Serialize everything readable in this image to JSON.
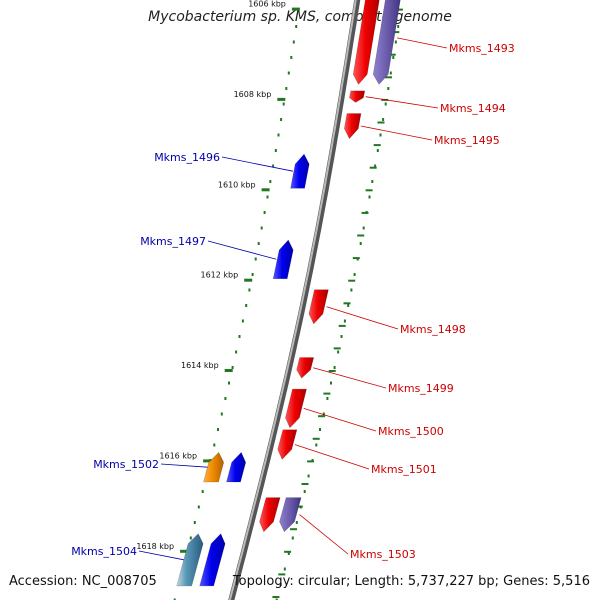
{
  "title": "Mycobacterium sp. KMS, complete genome",
  "footer": {
    "accession": "Accession: NC_008705",
    "summary": "Topology: circular; Length: 5,737,227 bp; Genes: 5,516"
  },
  "colors": {
    "forward_cds": "#ee0000",
    "reverse_cds": "#0000ee",
    "forward_label": "#cc0000",
    "reverse_label": "#0000aa",
    "tick": "#227722",
    "backbone": "#7a7a7a",
    "purple_feature": "#6a5aaa",
    "orange_feature": "#ee8800"
  },
  "ticks": [
    {
      "kbp": 1606,
      "label": "1606 kbp"
    },
    {
      "kbp": 1608,
      "label": "1608 kbp"
    },
    {
      "kbp": 1610,
      "label": "1610 kbp"
    },
    {
      "kbp": 1612,
      "label": "1612 kbp"
    },
    {
      "kbp": 1614,
      "label": "1614 kbp"
    },
    {
      "kbp": 1616,
      "label": "1616 kbp"
    },
    {
      "kbp": 1618,
      "label": "1618 kbp"
    }
  ],
  "genes": [
    {
      "name": "Mkms_1493",
      "strand": "forward",
      "color": "red",
      "start_kbp": 1605.6,
      "end_kbp": 1607.7
    },
    {
      "name": "Mkms_1493",
      "strand": "forward",
      "color": "purple",
      "start_kbp": 1605.6,
      "end_kbp": 1607.7,
      "label_hidden": true
    },
    {
      "name": "Mkms_1494",
      "strand": "forward",
      "color": "red",
      "start_kbp": 1607.8,
      "end_kbp": 1608.1
    },
    {
      "name": "Mkms_1495",
      "strand": "forward",
      "color": "red",
      "start_kbp": 1608.3,
      "end_kbp": 1608.9
    },
    {
      "name": "Mkms_1496",
      "strand": "reverse",
      "color": "blue",
      "start_kbp": 1609.2,
      "end_kbp": 1610.0
    },
    {
      "name": "Mkms_1497",
      "strand": "reverse",
      "color": "blue",
      "start_kbp": 1611.1,
      "end_kbp": 1612.0
    },
    {
      "name": "Mkms_1498",
      "strand": "forward",
      "color": "red",
      "start_kbp": 1612.2,
      "end_kbp": 1613.0
    },
    {
      "name": "Mkms_1499",
      "strand": "forward",
      "color": "red",
      "start_kbp": 1613.7,
      "end_kbp": 1614.2
    },
    {
      "name": "Mkms_1500",
      "strand": "forward",
      "color": "red",
      "start_kbp": 1614.4,
      "end_kbp": 1615.3
    },
    {
      "name": "Mkms_1501",
      "strand": "forward",
      "color": "red",
      "start_kbp": 1615.3,
      "end_kbp": 1616.0
    },
    {
      "name": "Mkms_1502",
      "strand": "reverse",
      "color": "orange",
      "start_kbp": 1615.8,
      "end_kbp": 1616.5
    },
    {
      "name": "Mkms_1502",
      "strand": "reverse",
      "color": "blue",
      "start_kbp": 1615.8,
      "end_kbp": 1616.5,
      "label_hidden": true
    },
    {
      "name": "Mkms_1503",
      "strand": "forward",
      "color": "red",
      "start_kbp": 1616.8,
      "end_kbp": 1617.6
    },
    {
      "name": "Mkms_1503",
      "strand": "forward",
      "color": "purple",
      "start_kbp": 1616.8,
      "end_kbp": 1617.6,
      "label_hidden": true
    },
    {
      "name": "Mkms_1504",
      "strand": "reverse",
      "color": "steelblue",
      "start_kbp": 1617.6,
      "end_kbp": 1618.8
    },
    {
      "name": "Mkms_1504",
      "strand": "reverse",
      "color": "blue",
      "start_kbp": 1617.6,
      "end_kbp": 1618.8,
      "label_hidden": true
    }
  ]
}
